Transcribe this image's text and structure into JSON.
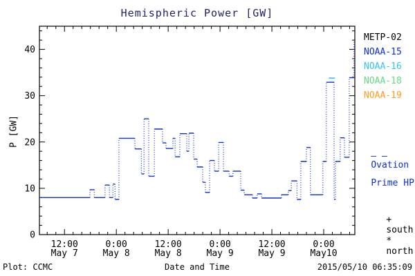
{
  "title": "Hemispheric Power [GW]",
  "colors": {
    "background": "#ffffff",
    "title_text": "#1f1f66",
    "axis": "#000000",
    "hpi_line": "#0c2fdd",
    "metp02": "#000000",
    "noaa15": "#0c2fdd",
    "noaa16": "#33c4f0",
    "noaa18": "#63d983",
    "noaa19": "#ff9d1e"
  },
  "legend": {
    "items": [
      {
        "label": "METP-02",
        "color": "#000000"
      },
      {
        "label": "NOAA-15",
        "color": "#0c2fdd"
      },
      {
        "label": "NOAA-16",
        "color": "#33c4f0"
      },
      {
        "label": "NOAA-18",
        "color": "#63d983"
      },
      {
        "label": "NOAA-19",
        "color": "#ff9d1e"
      }
    ]
  },
  "ovation": {
    "marker": "– –",
    "line1": "Ovation",
    "line2": "Prime HPI"
  },
  "hemisphere_markers": [
    {
      "symbol": "+",
      "label": "south"
    },
    {
      "symbol": "*",
      "label": "north"
    }
  ],
  "footer": {
    "left": "Plot: CCMC",
    "right": "2015/05/10 06:35:09"
  },
  "chart_data": {
    "type": "line",
    "subtype": "stepped-dotted-histogram",
    "title": "Hemispheric Power [GW]",
    "xlabel": "Date and Time",
    "ylabel": "P [GW]",
    "x_unit": "hours since 2015-05-07 00:00 UT",
    "xlim": [
      6.2,
      79.2
    ],
    "ylim": [
      0,
      45
    ],
    "y_major_ticks": [
      0,
      10,
      20,
      30,
      40
    ],
    "y_minor_step": 2,
    "x_minor_step_hours": 2,
    "x_major_ticks": [
      {
        "t": 12,
        "time": "12:00",
        "date": "May 7"
      },
      {
        "t": 24,
        "time": "0:00",
        "date": "May 8"
      },
      {
        "t": 36,
        "time": "12:00",
        "date": "May 8"
      },
      {
        "t": 48,
        "time": "0:00",
        "date": "May 9"
      },
      {
        "t": 60,
        "time": "12:00",
        "date": "May 9"
      },
      {
        "t": 72,
        "time": "0:00",
        "date": "May10"
      }
    ],
    "grid": false,
    "legend_position": "right",
    "series": [
      {
        "name": "Ovation Prime HPI (NOAA-15)",
        "color": "#0c2fdd",
        "end_t": 79.15,
        "steps": [
          [
            6.2,
            8
          ],
          [
            17.9,
            9.7
          ],
          [
            18.9,
            8
          ],
          [
            21.4,
            10.7
          ],
          [
            22.4,
            8
          ],
          [
            23.2,
            10.9
          ],
          [
            23.7,
            7.6
          ],
          [
            24.6,
            20.8
          ],
          [
            28.3,
            18.5
          ],
          [
            29.8,
            13.1
          ],
          [
            30.4,
            25
          ],
          [
            31.5,
            12.6
          ],
          [
            32.8,
            22.8
          ],
          [
            34.7,
            19.8
          ],
          [
            35.5,
            18.6
          ],
          [
            37.1,
            20.8
          ],
          [
            37.6,
            16.8
          ],
          [
            38.7,
            21.8
          ],
          [
            40.3,
            18
          ],
          [
            40.8,
            21.9
          ],
          [
            41.9,
            16.3
          ],
          [
            42.7,
            14.6
          ],
          [
            44,
            11.3
          ],
          [
            44.6,
            9.1
          ],
          [
            45.6,
            16
          ],
          [
            46.7,
            13.7
          ],
          [
            47.7,
            19.9
          ],
          [
            48.8,
            13.7
          ],
          [
            50.1,
            12.6
          ],
          [
            51,
            13.7
          ],
          [
            52.8,
            9.6
          ],
          [
            53.6,
            8.6
          ],
          [
            55.5,
            7.9
          ],
          [
            56.6,
            8.8
          ],
          [
            57.6,
            7.9
          ],
          [
            62.2,
            8.6
          ],
          [
            63.8,
            9.5
          ],
          [
            64.5,
            11.6
          ],
          [
            65.8,
            7.6
          ],
          [
            66.7,
            15.8
          ],
          [
            68,
            18.8
          ],
          [
            68.9,
            8.6
          ],
          [
            71.8,
            15.8
          ],
          [
            72.6,
            32.9
          ],
          [
            74.4,
            7.6
          ],
          [
            74.7,
            15.8
          ],
          [
            75.8,
            20.9
          ],
          [
            76.8,
            16.7
          ],
          [
            77.9,
            33.9
          ],
          [
            79,
            42
          ]
        ]
      },
      {
        "name": "NOAA-16",
        "color": "#33c4f0",
        "segment": {
          "t0": 73.2,
          "t1": 74.6,
          "v": 33.8
        }
      }
    ]
  }
}
